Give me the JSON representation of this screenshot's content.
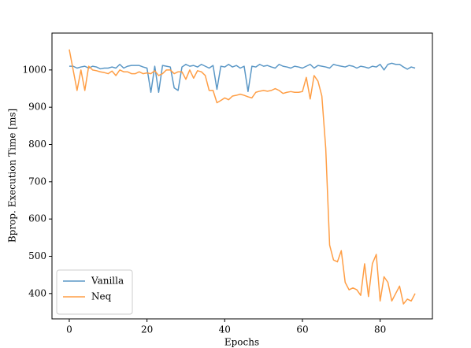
{
  "chart_data": {
    "type": "line",
    "xlabel": "Epochs",
    "ylabel": "Bprop. Execution Time [ms]",
    "x": [
      0,
      1,
      2,
      3,
      4,
      5,
      6,
      7,
      8,
      9,
      10,
      11,
      12,
      13,
      14,
      15,
      16,
      17,
      18,
      19,
      20,
      21,
      22,
      23,
      24,
      25,
      26,
      27,
      28,
      29,
      30,
      31,
      32,
      33,
      34,
      35,
      36,
      37,
      38,
      39,
      40,
      41,
      42,
      43,
      44,
      45,
      46,
      47,
      48,
      49,
      50,
      51,
      52,
      53,
      54,
      55,
      56,
      57,
      58,
      59,
      60,
      61,
      62,
      63,
      64,
      65,
      66,
      67,
      68,
      69,
      70,
      71,
      72,
      73,
      74,
      75,
      76,
      77,
      78,
      79,
      80,
      81,
      82,
      83,
      84,
      85,
      86,
      87,
      88,
      89
    ],
    "series": [
      {
        "name": "Vanilla",
        "color": "#5a97c6",
        "values": [
          1010,
          1010,
          1005,
          1008,
          1010,
          1005,
          1010,
          1008,
          1003,
          1005,
          1005,
          1008,
          1005,
          1015,
          1005,
          1010,
          1012,
          1012,
          1012,
          1008,
          1005,
          940,
          1010,
          940,
          1012,
          1010,
          1008,
          952,
          945,
          1008,
          1015,
          1010,
          1012,
          1008,
          1015,
          1010,
          1005,
          1012,
          948,
          1010,
          1008,
          1015,
          1008,
          1012,
          1005,
          1010,
          942,
          1010,
          1008,
          1015,
          1010,
          1012,
          1008,
          1005,
          1015,
          1010,
          1008,
          1005,
          1010,
          1008,
          1005,
          1010,
          1015,
          1005,
          1012,
          1010,
          1008,
          1005,
          1015,
          1012,
          1010,
          1008,
          1012,
          1010,
          1005,
          1010,
          1008,
          1005,
          1010,
          1008,
          1015,
          1000,
          1015,
          1018,
          1015,
          1015,
          1008,
          1002,
          1008,
          1005
        ]
      },
      {
        "name": "Neq",
        "color": "#ff9e45",
        "values": [
          1055,
          1000,
          945,
          1000,
          945,
          1010,
          1000,
          998,
          995,
          993,
          990,
          997,
          985,
          1000,
          995,
          995,
          990,
          990,
          995,
          990,
          992,
          990,
          998,
          985,
          990,
          1000,
          1000,
          990,
          995,
          995,
          975,
          1000,
          978,
          998,
          995,
          985,
          945,
          945,
          912,
          918,
          925,
          920,
          930,
          932,
          935,
          932,
          928,
          925,
          940,
          943,
          945,
          943,
          945,
          950,
          945,
          937,
          940,
          942,
          940,
          940,
          942,
          980,
          922,
          985,
          970,
          930,
          790,
          530,
          490,
          485,
          515,
          430,
          410,
          415,
          410,
          395,
          480,
          392,
          480,
          505,
          380,
          445,
          430,
          380,
          400,
          420,
          372,
          385,
          380,
          400
        ]
      }
    ],
    "xlim": [
      -4.45,
      93.45
    ],
    "ylim": [
      332,
      1099
    ],
    "xticks": [
      0,
      20,
      40,
      60,
      80
    ],
    "yticks": [
      400,
      500,
      600,
      700,
      800,
      900,
      1000
    ],
    "legend": "lower left"
  }
}
